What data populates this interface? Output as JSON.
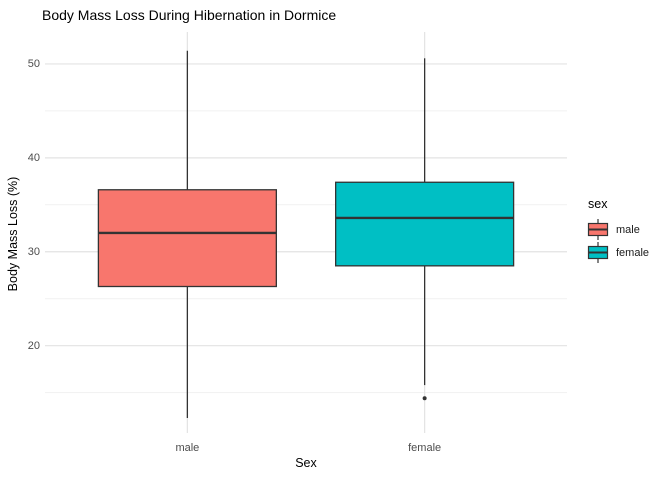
{
  "chart_data": {
    "type": "boxplot",
    "title": "Body Mass Loss During Hibernation in Dormice",
    "xlabel": "Sex",
    "ylabel": "Body Mass Loss (%)",
    "categories": [
      "male",
      "female"
    ],
    "ylim": [
      10.7,
      53.4
    ],
    "yticks_major": [
      20,
      30,
      40,
      50
    ],
    "yticks_minor": [
      15,
      25,
      35,
      45
    ],
    "grid": true,
    "legend_position": "right",
    "legend": {
      "title": "sex"
    },
    "series": [
      {
        "name": "male",
        "color": "#F8766D",
        "min": 12.3,
        "q1": 26.3,
        "median": 32.0,
        "q3": 36.6,
        "max": 51.4,
        "outliers": []
      },
      {
        "name": "female",
        "color": "#00BFC4",
        "min": 15.8,
        "q1": 28.5,
        "median": 33.6,
        "q3": 37.4,
        "max": 50.6,
        "outliers": [
          14.4
        ]
      }
    ],
    "style": {
      "box_stroke": "#333333",
      "outlier_color": "#333333",
      "grid_major": "#e3e3e3",
      "grid_minor": "#f1f1f1",
      "tick_text": "#4d4d4d",
      "background": "#ffffff"
    }
  }
}
